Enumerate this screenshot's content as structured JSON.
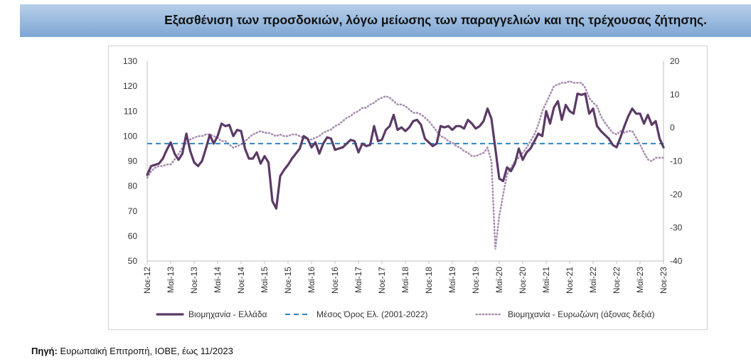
{
  "header": {
    "title": "Εξασθένιση των προσδοκιών, λόγω μείωσης των παραγγελιών και της τρέχουσας ζήτησης."
  },
  "footer": {
    "source_label": "Πηγή:",
    "source_text": "Ευρωπαϊκή Επιτροπή, ΙΟΒΕ, έως 11/2023"
  },
  "colors": {
    "greece": "#5b3a66",
    "average": "#2e86c1",
    "eurozone": "#a88cb0",
    "banner_top": "#b7cfe9",
    "banner_bottom": "#7ea6d4"
  },
  "chart_data": {
    "type": "line",
    "title": "",
    "xlabel": "",
    "ylabel": "",
    "ylim": [
      50,
      130
    ],
    "y_ticks": [
      "130",
      "120",
      "110",
      "100",
      "90",
      "80",
      "70",
      "60",
      "50"
    ],
    "y2lim": [
      -40,
      20
    ],
    "y2_ticks": [
      "20",
      "10",
      "0",
      "-10",
      "-20",
      "-30",
      "-40"
    ],
    "x_start": "2012-11",
    "x_end": "2023-11",
    "x_tick_labels": [
      "Νοε-12",
      "Μαϊ-13",
      "Νοε-13",
      "Μαϊ-14",
      "Νοε-14",
      "Μαϊ-15",
      "Νοε-15",
      "Μαϊ-16",
      "Νοε-16",
      "Μαϊ-17",
      "Νοε-17",
      "Μαϊ-18",
      "Νοε-18",
      "Μαϊ-19",
      "Νοε-19",
      "Μαϊ-20",
      "Νοε-20",
      "Μαϊ-21",
      "Νοε-21",
      "Μαϊ-22",
      "Νοε-22",
      "Μαϊ-23",
      "Νοε-23"
    ],
    "grid": false,
    "legend_position": "bottom",
    "series": [
      {
        "name": "Βιομηχανία  - Ελλάδα",
        "axis": "left",
        "style": "solid",
        "points": [
          [
            "2012-11",
            84.5
          ],
          [
            "2012-12",
            88
          ],
          [
            "2013-01",
            88.5
          ],
          [
            "2013-02",
            89
          ],
          [
            "2013-03",
            91
          ],
          [
            "2013-04",
            94.5
          ],
          [
            "2013-05",
            97.5
          ],
          [
            "2013-06",
            93
          ],
          [
            "2013-07",
            90.5
          ],
          [
            "2013-08",
            93
          ],
          [
            "2013-09",
            101
          ],
          [
            "2013-10",
            94
          ],
          [
            "2013-11",
            89.5
          ],
          [
            "2013-12",
            88
          ],
          [
            "2014-01",
            90
          ],
          [
            "2014-02",
            95
          ],
          [
            "2014-03",
            100.5
          ],
          [
            "2014-04",
            97
          ],
          [
            "2014-05",
            100
          ],
          [
            "2014-06",
            105
          ],
          [
            "2014-07",
            104
          ],
          [
            "2014-08",
            104.5
          ],
          [
            "2014-09",
            100
          ],
          [
            "2014-10",
            102.5
          ],
          [
            "2014-11",
            102
          ],
          [
            "2014-12",
            95
          ],
          [
            "2015-01",
            91
          ],
          [
            "2015-02",
            91
          ],
          [
            "2015-03",
            93.5
          ],
          [
            "2015-04",
            89
          ],
          [
            "2015-05",
            92
          ],
          [
            "2015-06",
            89.5
          ],
          [
            "2015-07",
            74
          ],
          [
            "2015-08",
            71
          ],
          [
            "2015-09",
            84
          ],
          [
            "2015-10",
            86.5
          ],
          [
            "2015-11",
            88.5
          ],
          [
            "2015-12",
            91
          ],
          [
            "2016-01",
            93
          ],
          [
            "2016-02",
            95
          ],
          [
            "2016-03",
            100
          ],
          [
            "2016-04",
            99
          ],
          [
            "2016-05",
            95.5
          ],
          [
            "2016-06",
            97.5
          ],
          [
            "2016-07",
            93
          ],
          [
            "2016-08",
            97
          ],
          [
            "2016-09",
            99.5
          ],
          [
            "2016-10",
            99
          ],
          [
            "2016-11",
            94.5
          ],
          [
            "2016-12",
            95
          ],
          [
            "2017-01",
            95.5
          ],
          [
            "2017-02",
            97
          ],
          [
            "2017-03",
            98.5
          ],
          [
            "2017-04",
            98
          ],
          [
            "2017-05",
            93.5
          ],
          [
            "2017-06",
            97
          ],
          [
            "2017-07",
            96
          ],
          [
            "2017-08",
            96.5
          ],
          [
            "2017-09",
            104
          ],
          [
            "2017-10",
            98
          ],
          [
            "2017-11",
            98.5
          ],
          [
            "2017-12",
            102.5
          ],
          [
            "2018-01",
            104
          ],
          [
            "2018-02",
            108.5
          ],
          [
            "2018-03",
            102.5
          ],
          [
            "2018-04",
            103.5
          ],
          [
            "2018-05",
            102
          ],
          [
            "2018-06",
            103.5
          ],
          [
            "2018-07",
            106
          ],
          [
            "2018-08",
            106.5
          ],
          [
            "2018-09",
            104.5
          ],
          [
            "2018-10",
            99
          ],
          [
            "2018-11",
            97.5
          ],
          [
            "2018-12",
            96
          ],
          [
            "2019-01",
            97
          ],
          [
            "2019-02",
            104
          ],
          [
            "2019-03",
            103.5
          ],
          [
            "2019-04",
            104
          ],
          [
            "2019-05",
            102.5
          ],
          [
            "2019-06",
            104
          ],
          [
            "2019-07",
            104
          ],
          [
            "2019-08",
            103
          ],
          [
            "2019-09",
            106.5
          ],
          [
            "2019-10",
            105
          ],
          [
            "2019-11",
            103
          ],
          [
            "2019-12",
            104
          ],
          [
            "2020-01",
            106
          ],
          [
            "2020-02",
            111
          ],
          [
            "2020-03",
            107
          ],
          [
            "2020-04",
            95
          ],
          [
            "2020-05",
            83
          ],
          [
            "2020-06",
            82
          ],
          [
            "2020-07",
            87.5
          ],
          [
            "2020-08",
            86
          ],
          [
            "2020-09",
            89
          ],
          [
            "2020-10",
            95
          ],
          [
            "2020-11",
            90.5
          ],
          [
            "2020-12",
            93.5
          ],
          [
            "2021-01",
            95
          ],
          [
            "2021-02",
            98
          ],
          [
            "2021-03",
            101
          ],
          [
            "2021-04",
            100
          ],
          [
            "2021-05",
            110
          ],
          [
            "2021-06",
            105
          ],
          [
            "2021-07",
            111.5
          ],
          [
            "2021-08",
            114
          ],
          [
            "2021-09",
            106.5
          ],
          [
            "2021-10",
            112.5
          ],
          [
            "2021-11",
            110
          ],
          [
            "2021-12",
            109
          ],
          [
            "2022-01",
            117
          ],
          [
            "2022-02",
            116.5
          ],
          [
            "2022-03",
            117
          ],
          [
            "2022-04",
            109
          ],
          [
            "2022-05",
            111
          ],
          [
            "2022-06",
            104
          ],
          [
            "2022-07",
            102
          ],
          [
            "2022-08",
            100.5
          ],
          [
            "2022-09",
            99
          ],
          [
            "2022-10",
            96.5
          ],
          [
            "2022-11",
            95.5
          ],
          [
            "2022-12",
            99.5
          ],
          [
            "2023-01",
            104
          ],
          [
            "2023-02",
            108
          ],
          [
            "2023-03",
            111
          ],
          [
            "2023-04",
            109
          ],
          [
            "2023-05",
            109
          ],
          [
            "2023-06",
            105
          ],
          [
            "2023-07",
            108.5
          ],
          [
            "2023-08",
            104.5
          ],
          [
            "2023-09",
            106
          ],
          [
            "2023-10",
            99
          ],
          [
            "2023-11",
            95.5
          ]
        ]
      },
      {
        "name": "Μέσος Όρος Ελ. (2001-2022)",
        "axis": "left",
        "style": "dashed",
        "points": [
          [
            "2012-11",
            97
          ],
          [
            "2023-11",
            97
          ]
        ]
      },
      {
        "name": "Βιομηχανία - Ευρωζώνη (άξονας δεξιά)",
        "axis": "right",
        "style": "dotted",
        "points": [
          [
            "2012-11",
            -15
          ],
          [
            "2012-12",
            -13
          ],
          [
            "2013-01",
            -12
          ],
          [
            "2013-02",
            -11.5
          ],
          [
            "2013-03",
            -11.5
          ],
          [
            "2013-04",
            -11
          ],
          [
            "2013-05",
            -11
          ],
          [
            "2013-06",
            -9.5
          ],
          [
            "2013-07",
            -8
          ],
          [
            "2013-08",
            -6
          ],
          [
            "2013-09",
            -4.5
          ],
          [
            "2013-10",
            -3.5
          ],
          [
            "2013-11",
            -3
          ],
          [
            "2013-12",
            -2.5
          ],
          [
            "2014-01",
            -2.5
          ],
          [
            "2014-02",
            -2
          ],
          [
            "2014-03",
            -2
          ],
          [
            "2014-04",
            -2.5
          ],
          [
            "2014-05",
            -3
          ],
          [
            "2014-06",
            -4
          ],
          [
            "2014-07",
            -4
          ],
          [
            "2014-08",
            -5
          ],
          [
            "2014-09",
            -6
          ],
          [
            "2014-10",
            -5.5
          ],
          [
            "2014-11",
            -5
          ],
          [
            "2014-12",
            -4
          ],
          [
            "2015-01",
            -3
          ],
          [
            "2015-02",
            -2
          ],
          [
            "2015-03",
            -1.5
          ],
          [
            "2015-04",
            -1
          ],
          [
            "2015-05",
            -1.5
          ],
          [
            "2015-06",
            -1.5
          ],
          [
            "2015-07",
            -2
          ],
          [
            "2015-08",
            -2.5
          ],
          [
            "2015-09",
            -2
          ],
          [
            "2015-10",
            -2.5
          ],
          [
            "2015-11",
            -2.5
          ],
          [
            "2015-12",
            -2
          ],
          [
            "2016-01",
            -2
          ],
          [
            "2016-02",
            -2.5
          ],
          [
            "2016-03",
            -3
          ],
          [
            "2016-04",
            -3.5
          ],
          [
            "2016-05",
            -3.5
          ],
          [
            "2016-06",
            -3
          ],
          [
            "2016-07",
            -2.5
          ],
          [
            "2016-08",
            -1.5
          ],
          [
            "2016-09",
            -1
          ],
          [
            "2016-10",
            -0.5
          ],
          [
            "2016-11",
            0.5
          ],
          [
            "2016-12",
            1
          ],
          [
            "2017-01",
            2
          ],
          [
            "2017-02",
            3
          ],
          [
            "2017-03",
            3.5
          ],
          [
            "2017-04",
            4.5
          ],
          [
            "2017-05",
            5
          ],
          [
            "2017-06",
            6
          ],
          [
            "2017-07",
            6
          ],
          [
            "2017-08",
            7
          ],
          [
            "2017-09",
            7.5
          ],
          [
            "2017-10",
            8.5
          ],
          [
            "2017-11",
            9
          ],
          [
            "2017-12",
            9.5
          ],
          [
            "2018-01",
            9
          ],
          [
            "2018-02",
            8
          ],
          [
            "2018-03",
            7
          ],
          [
            "2018-04",
            7
          ],
          [
            "2018-05",
            6.5
          ],
          [
            "2018-06",
            5.5
          ],
          [
            "2018-07",
            4.5
          ],
          [
            "2018-08",
            4.5
          ],
          [
            "2018-09",
            4
          ],
          [
            "2018-10",
            3
          ],
          [
            "2018-11",
            2
          ],
          [
            "2018-12",
            0.5
          ],
          [
            "2019-01",
            -1
          ],
          [
            "2019-02",
            -2.5
          ],
          [
            "2019-03",
            -3
          ],
          [
            "2019-04",
            -4
          ],
          [
            "2019-05",
            -4.5
          ],
          [
            "2019-06",
            -5.5
          ],
          [
            "2019-07",
            -6
          ],
          [
            "2019-08",
            -7
          ],
          [
            "2019-09",
            -7.5
          ],
          [
            "2019-10",
            -8.5
          ],
          [
            "2019-11",
            -8.5
          ],
          [
            "2019-12",
            -8
          ],
          [
            "2020-01",
            -7.5
          ],
          [
            "2020-02",
            -6
          ],
          [
            "2020-03",
            -10
          ],
          [
            "2020-04",
            -36.5
          ],
          [
            "2020-05",
            -26.5
          ],
          [
            "2020-06",
            -20
          ],
          [
            "2020-07",
            -14
          ],
          [
            "2020-08",
            -12
          ],
          [
            "2020-09",
            -10
          ],
          [
            "2020-10",
            -9
          ],
          [
            "2020-11",
            -7.5
          ],
          [
            "2020-12",
            -6
          ],
          [
            "2021-01",
            -4
          ],
          [
            "2021-02",
            -2
          ],
          [
            "2021-03",
            1
          ],
          [
            "2021-04",
            5
          ],
          [
            "2021-05",
            7.5
          ],
          [
            "2021-06",
            10
          ],
          [
            "2021-07",
            12.5
          ],
          [
            "2021-08",
            13
          ],
          [
            "2021-09",
            13.5
          ],
          [
            "2021-10",
            13.5
          ],
          [
            "2021-11",
            14
          ],
          [
            "2021-12",
            13.5
          ],
          [
            "2022-01",
            13.5
          ],
          [
            "2022-02",
            13.5
          ],
          [
            "2022-03",
            12
          ],
          [
            "2022-04",
            9
          ],
          [
            "2022-05",
            7.5
          ],
          [
            "2022-06",
            6.5
          ],
          [
            "2022-07",
            3.5
          ],
          [
            "2022-08",
            1.5
          ],
          [
            "2022-09",
            0
          ],
          [
            "2022-10",
            -1.5
          ],
          [
            "2022-11",
            -2
          ],
          [
            "2022-12",
            -1
          ],
          [
            "2023-01",
            -1.5
          ],
          [
            "2023-02",
            -1
          ],
          [
            "2023-03",
            -1
          ],
          [
            "2023-04",
            -3
          ],
          [
            "2023-05",
            -5
          ],
          [
            "2023-06",
            -7.5
          ],
          [
            "2023-07",
            -9.5
          ],
          [
            "2023-08",
            -10
          ],
          [
            "2023-09",
            -9
          ],
          [
            "2023-10",
            -9
          ],
          [
            "2023-11",
            -9
          ]
        ]
      }
    ]
  }
}
